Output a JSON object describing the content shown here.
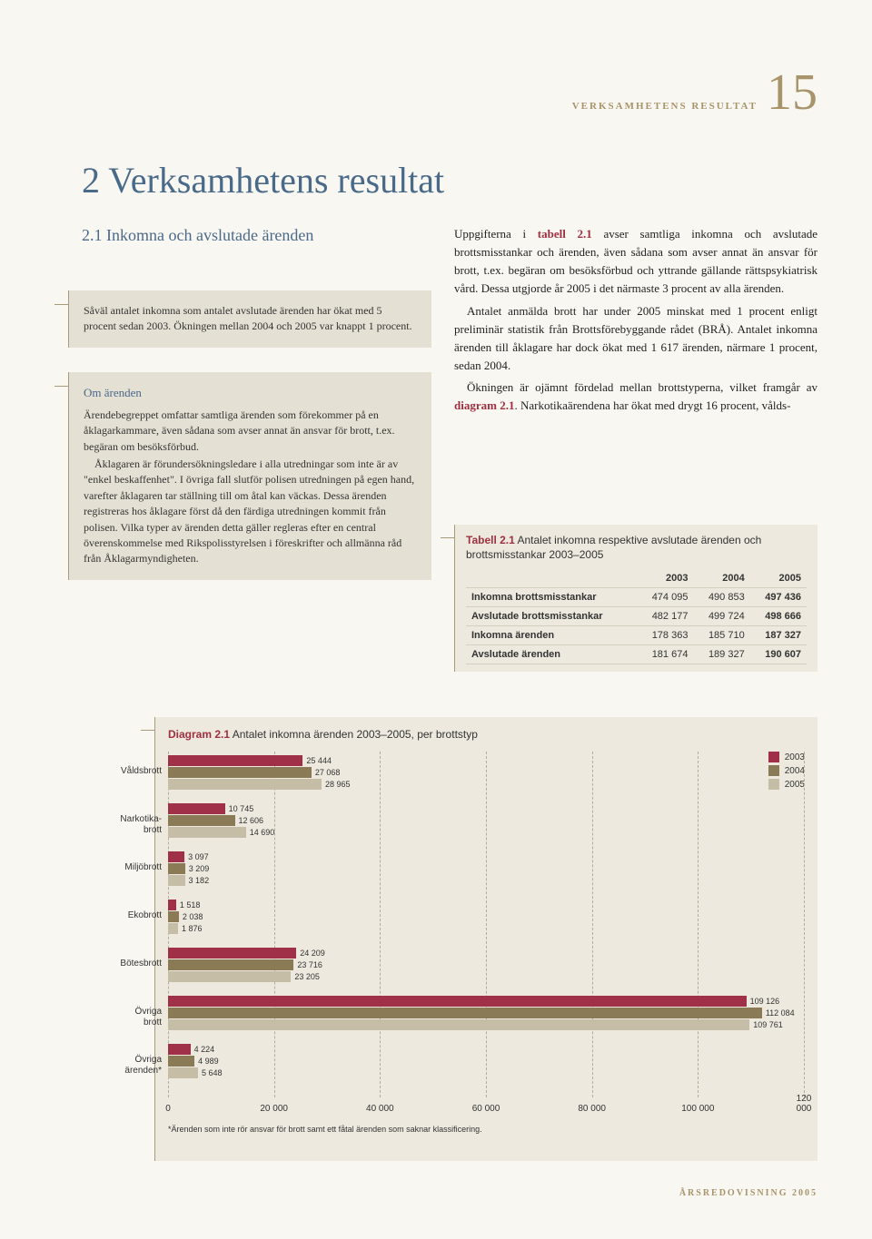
{
  "header": {
    "label": "VERKSAMHETENS RESULTAT",
    "page": "15"
  },
  "title": "2 Verksamhetens resultat",
  "section": {
    "num": "2.1",
    "text": "Inkomna och avslutade ärenden"
  },
  "box1": "Såväl antalet inkomna som antalet avslutade ärenden har ökat med 5 procent sedan 2003. Ökningen mellan 2004 och 2005 var knappt 1 procent.",
  "box2": {
    "heading": "Om ärenden",
    "p1": "Ärendebegreppet omfattar samtliga ärenden som förekommer på en åklagarkammare, även sådana som avser annat än ansvar för brott, t.ex. begäran om besöksförbud.",
    "p2": "Åklagaren är förundersökningsledare i alla utredningar som inte är av \"enkel beskaffenhet\". I övriga fall slutför polisen utredningen på egen hand, varefter åklagaren tar ställning till om åtal kan väckas. Dessa ärenden registreras hos åklagare först då den färdiga utredningen kommit från polisen. Vilka typer av ärenden detta gäller regleras efter en central överenskommelse med Rikspolisstyrelsen i föreskrifter och allmänna råd från Åklagarmyndigheten."
  },
  "rc": {
    "p1a": "Uppgifterna i ",
    "p1ref": "tabell 2.1",
    "p1b": " avser samtliga inkomna och avslutade brottsmisstankar och ärenden, även sådana som avser annat än ansvar för brott, t.ex. begäran om besöksförbud och yttrande gällande rättspsykiatrisk vård. Dessa utgjorde år 2005 i det närmaste 3 procent av alla ärenden.",
    "p2": "Antalet anmälda brott har under 2005 minskat med 1 procent enligt preliminär statistik från Brottsförebyggande rådet (BRÅ). Antalet inkomna ärenden till åklagare har dock ökat med 1 617 ärenden, närmare 1 procent, sedan 2004.",
    "p3a": "Ökningen är ojämnt fördelad mellan brottstyperna, vilket framgår av ",
    "p3ref": "diagram 2.1",
    "p3b": ". Narkotikaärendena har ökat med drygt 16 procent, vålds-"
  },
  "table": {
    "num": "Tabell 2.1",
    "title": " Antalet inkomna respektive avslutade ärenden och brottsmisstankar 2003–2005",
    "cols": [
      "2003",
      "2004",
      "2005"
    ],
    "rows": [
      {
        "label": "Inkomna brottsmisstankar",
        "v": [
          "474 095",
          "490 853",
          "497 436"
        ]
      },
      {
        "label": "Avslutade brottsmisstankar",
        "v": [
          "482 177",
          "499 724",
          "498 666"
        ]
      },
      {
        "label": "Inkomna ärenden",
        "v": [
          "178 363",
          "185 710",
          "187 327"
        ]
      },
      {
        "label": "Avslutade ärenden",
        "v": [
          "181 674",
          "189 327",
          "190 607"
        ]
      }
    ]
  },
  "chart": {
    "num": "Diagram 2.1",
    "title": " Antalet inkomna ärenden 2003–2005, per brottstyp",
    "xmax": 120000,
    "xticks": [
      0,
      20000,
      40000,
      60000,
      80000,
      100000,
      120000
    ],
    "xticklabels": [
      "0",
      "20 000",
      "40 000",
      "60 000",
      "80 000",
      "100 000",
      "120 000"
    ],
    "colors": {
      "2003": "#a03048",
      "2004": "#8a7a56",
      "2005": "#c5bda5"
    },
    "legend": [
      "2003",
      "2004",
      "2005"
    ],
    "categories": [
      {
        "label": "Våldsbrott",
        "values": [
          25444,
          27068,
          28965
        ],
        "labels": [
          "25 444",
          "27 068",
          "28 965"
        ]
      },
      {
        "label": "Narkotika-\nbrott",
        "values": [
          10745,
          12606,
          14690
        ],
        "labels": [
          "10 745",
          "12 606",
          "14 690"
        ]
      },
      {
        "label": "Miljöbrott",
        "values": [
          3097,
          3209,
          3182
        ],
        "labels": [
          "3 097",
          "3 209",
          "3 182"
        ]
      },
      {
        "label": "Ekobrott",
        "values": [
          1518,
          2038,
          1876
        ],
        "labels": [
          "1 518",
          "2 038",
          "1 876"
        ]
      },
      {
        "label": "Bötesbrott",
        "values": [
          24209,
          23716,
          23205
        ],
        "labels": [
          "24 209",
          "23 716",
          "23 205"
        ]
      },
      {
        "label": "Övriga\nbrott",
        "values": [
          109126,
          112084,
          109761
        ],
        "labels": [
          "109 126",
          "112 084",
          "109 761"
        ]
      },
      {
        "label": "Övriga\närenden*",
        "values": [
          4224,
          4989,
          5648
        ],
        "labels": [
          "4 224",
          "4 989",
          "5 648"
        ]
      }
    ],
    "note": "*Ärenden som inte rör ansvar för brott samt ett fåtal ärenden som saknar klassificering."
  },
  "footer": "ÅRSREDOVISNING 2005"
}
